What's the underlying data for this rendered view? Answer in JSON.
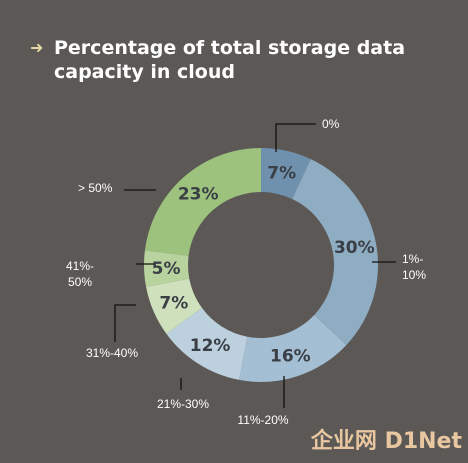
{
  "title_lines": [
    "Percentage of total storage data",
    "capacity in cloud"
  ],
  "title_bullet_icon": "arrow-right-icon",
  "watermark": {
    "brand": "企业网 D1Net"
  },
  "colors": {
    "background": "#5b5856",
    "title_arrow": "#e4d6a2"
  },
  "chart_data": {
    "type": "pie",
    "title": "Percentage of total storage data capacity in cloud",
    "donut": true,
    "slices": [
      {
        "category": "0%",
        "value": 7,
        "label": "7%",
        "color": "#6f91ad"
      },
      {
        "category": "1%-\n10%",
        "value": 30,
        "label": "30%",
        "color": "#8fadc2"
      },
      {
        "category": "11%-20%",
        "value": 16,
        "label": "16%",
        "color": "#a4bfd3"
      },
      {
        "category": "21%-30%",
        "value": 12,
        "label": "12%",
        "color": "#bcd0de"
      },
      {
        "category": "31%-40%",
        "value": 7,
        "label": "7%",
        "color": "#cfe0bc"
      },
      {
        "category": "41%-\n50%",
        "value": 5,
        "label": "5%",
        "color": "#b8d39e"
      },
      {
        "category": "> 50%",
        "value": 23,
        "label": "23%",
        "color": "#9dc27e"
      }
    ]
  }
}
